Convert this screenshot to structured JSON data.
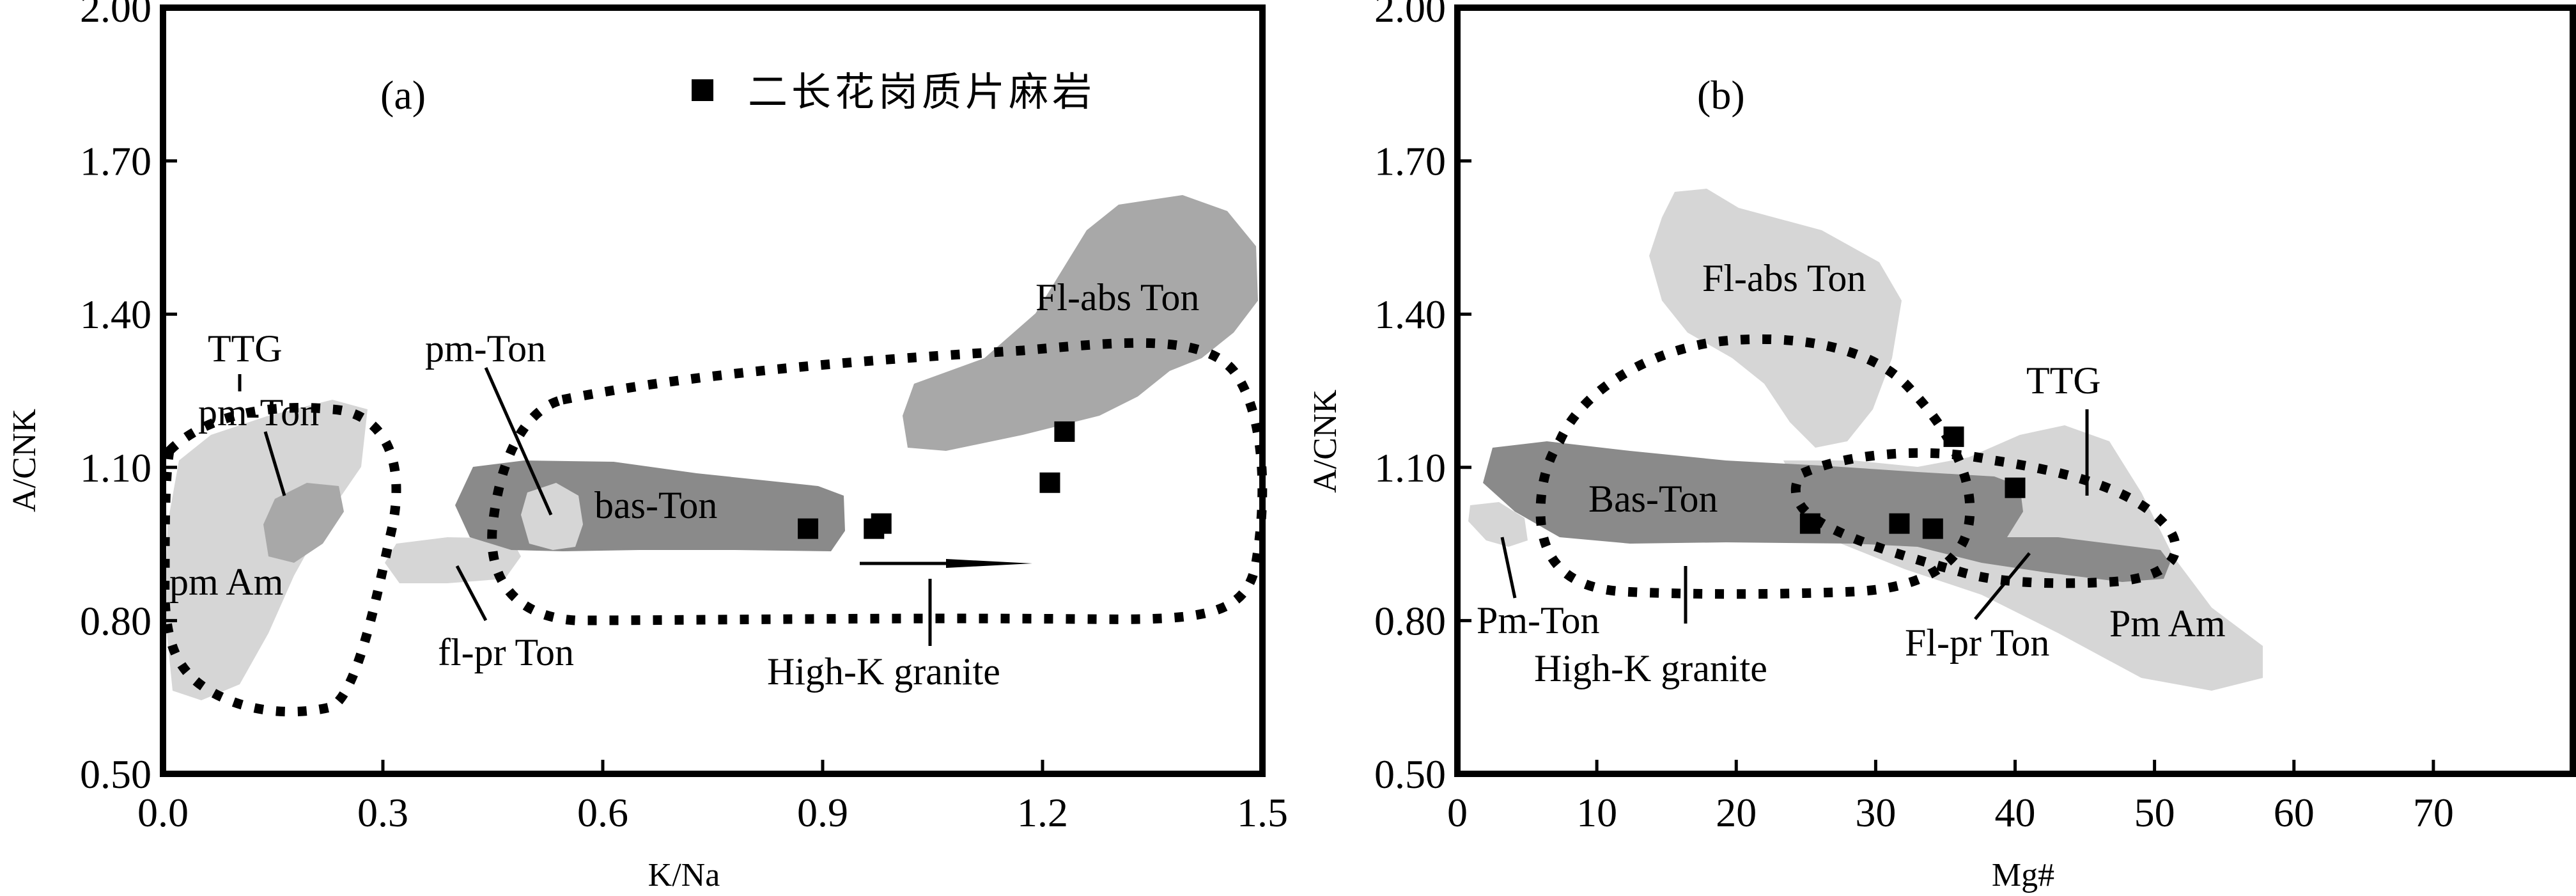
{
  "chart_data": [
    {
      "type": "scatter",
      "panel": "(a)",
      "xlabel": "K/Na",
      "ylabel": "A/CNK",
      "xlim": [
        0,
        1.5
      ],
      "ylim": [
        0.5,
        2.0
      ],
      "xticks": [
        "0.0",
        "0.3",
        "0.6",
        "0.9",
        "1.2",
        "1.5"
      ],
      "yticks": [
        "0.50",
        "0.80",
        "1.10",
        "1.40",
        "1.70",
        "2.00"
      ],
      "legend": {
        "marker": "filled-square",
        "label": "二长花岗质片麻岩",
        "position": "top-center"
      },
      "series": [
        {
          "name": "二长花岗质片麻岩",
          "points": [
            [
              0.88,
              0.98
            ],
            [
              0.97,
              0.98
            ],
            [
              0.98,
              0.99
            ],
            [
              1.21,
              1.07
            ],
            [
              1.23,
              1.17
            ]
          ]
        }
      ],
      "regions": [
        "TTG",
        "pm-Ton",
        "pm Am",
        "pm-Ton",
        "bas-Ton",
        "fl-pr Ton",
        "Fl-abs Ton",
        "High-K granite"
      ]
    },
    {
      "type": "scatter",
      "panel": "(b)",
      "xlabel": "Mg#",
      "ylabel": "A/CNK",
      "xlim": [
        0,
        80
      ],
      "ylim": [
        0.5,
        2.0
      ],
      "xticks": [
        "0",
        "10",
        "20",
        "30",
        "40",
        "50",
        "60",
        "70"
      ],
      "yticks": [
        "0.50",
        "0.80",
        "1.10",
        "1.40",
        "1.70",
        "2.00"
      ],
      "series": [
        {
          "name": "二长花岗质片麻岩",
          "points": [
            [
              25.3,
              0.99
            ],
            [
              31.7,
              0.99
            ],
            [
              34.1,
              0.98
            ],
            [
              35.6,
              1.16
            ],
            [
              40.0,
              1.06
            ]
          ]
        }
      ],
      "regions": [
        "Fl-abs Ton",
        "TTG",
        "Bas-Ton",
        "Pm-Ton",
        "High-K granite",
        "Fl-pr Ton",
        "Pm Am"
      ]
    }
  ],
  "colors": {
    "light_field": "#d6d6d6",
    "mid_field": "#a8a8a8",
    "dark_field": "#8a8a8a"
  }
}
